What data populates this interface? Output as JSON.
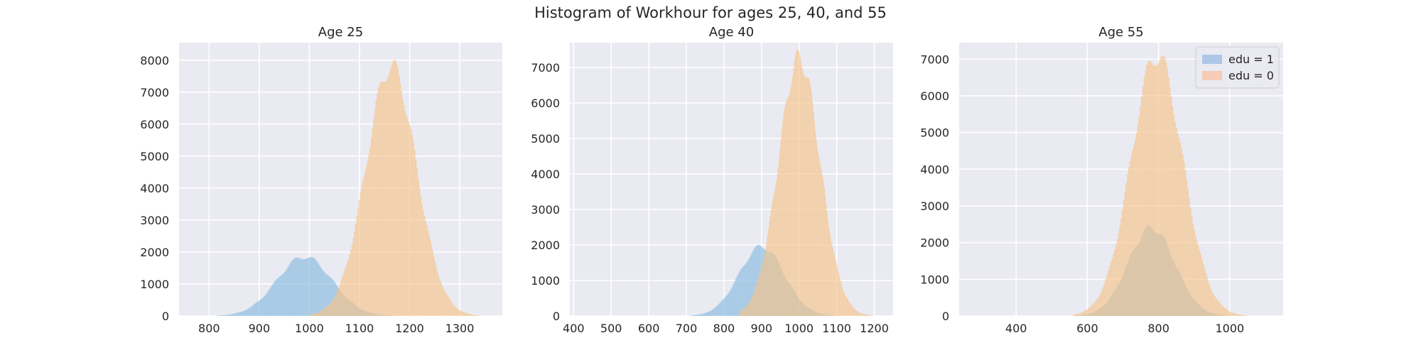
{
  "figure": {
    "title": "Histogram of Workhour for ages 25, 40, and 55"
  },
  "legend": {
    "entries": [
      {
        "label": "edu = 1",
        "color": "#aec7e8"
      },
      {
        "label": "edu = 0",
        "color": "#f5ccb5"
      }
    ]
  },
  "chart_data": [
    {
      "type": "histogram",
      "title": "Age 25",
      "xlabel": "",
      "ylabel": "",
      "xlim": [
        740,
        1385
      ],
      "ylim": [
        0,
        8550
      ],
      "xticks": [
        800,
        900,
        1000,
        1100,
        1200,
        1300
      ],
      "yticks": [
        0,
        1000,
        2000,
        3000,
        4000,
        5000,
        6000,
        7000,
        8000
      ],
      "grid": true,
      "legend": false,
      "series": [
        {
          "name": "edu = 1",
          "color": "#8fbfe0",
          "mean": 990,
          "sd": 55,
          "peak": 1850,
          "range": [
            800,
            1200
          ]
        },
        {
          "name": "edu = 0",
          "color": "#f6c48a",
          "mean": 1163,
          "sd": 50,
          "peak": 7800,
          "range": [
            1000,
            1360
          ]
        }
      ]
    },
    {
      "type": "histogram",
      "title": "Age 40",
      "xlabel": "",
      "ylabel": "",
      "xlim": [
        390,
        1250
      ],
      "ylim": [
        0,
        7700
      ],
      "xticks": [
        400,
        500,
        600,
        700,
        800,
        900,
        1000,
        1100,
        1200
      ],
      "yticks": [
        0,
        1000,
        2000,
        3000,
        4000,
        5000,
        6000,
        7000
      ],
      "grid": true,
      "legend": false,
      "series": [
        {
          "name": "edu = 1",
          "color": "#8fbfe0",
          "mean": 900,
          "sd": 60,
          "peak": 1950,
          "range": [
            700,
            1200
          ]
        },
        {
          "name": "edu = 0",
          "color": "#f6c48a",
          "mean": 1000,
          "sd": 55,
          "peak": 7250,
          "range": [
            840,
            1200
          ]
        }
      ]
    },
    {
      "type": "histogram",
      "title": "Age 55",
      "xlabel": "",
      "ylabel": "",
      "xlim": [
        240,
        1150
      ],
      "ylim": [
        0,
        7450
      ],
      "xticks": [
        400,
        600,
        800,
        1000
      ],
      "yticks": [
        0,
        1000,
        2000,
        3000,
        4000,
        5000,
        6000,
        7000
      ],
      "grid": true,
      "legend": "top-right",
      "series": [
        {
          "name": "edu = 1",
          "color": "#8fbfe0",
          "mean": 780,
          "sd": 65,
          "peak": 2400,
          "range": [
            560,
            1050
          ]
        },
        {
          "name": "edu = 0",
          "color": "#f6c48a",
          "mean": 795,
          "sd": 72,
          "peak": 7100,
          "range": [
            560,
            1100
          ]
        }
      ]
    }
  ]
}
